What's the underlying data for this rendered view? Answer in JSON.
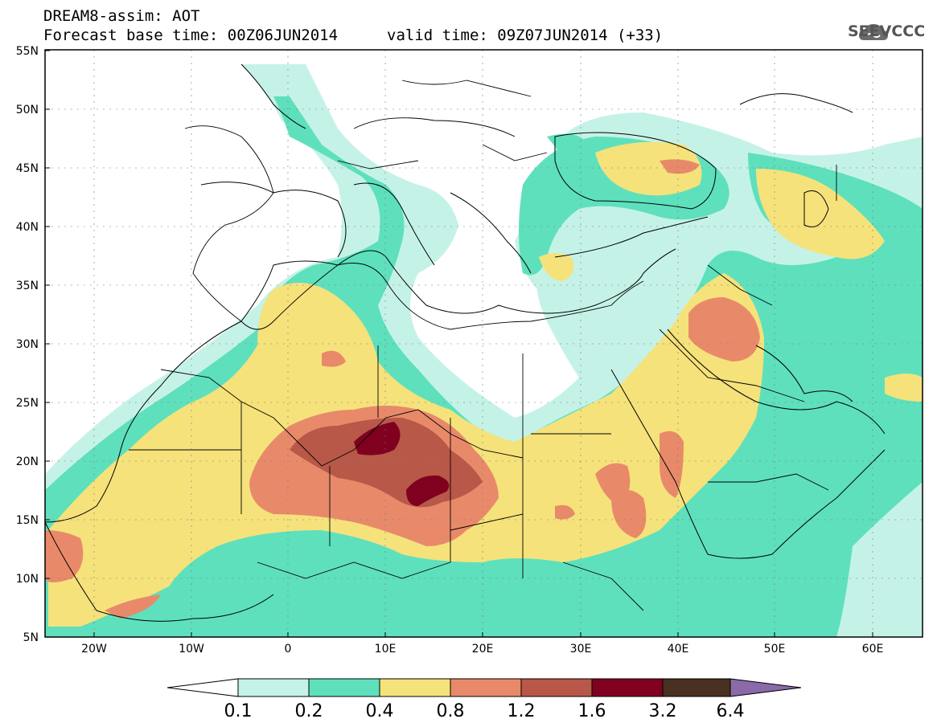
{
  "header": {
    "line1": "DREAM8-assim: AOT",
    "line2": "Forecast base time: 00Z06JUN2014",
    "line3": "valid time: 09Z07JUN2014 (+33)"
  },
  "logo": {
    "text": "SEEVCCC",
    "icon": "cloud-icon"
  },
  "map": {
    "lon_range": [
      -25,
      65
    ],
    "lat_range": [
      5,
      55
    ],
    "lat_ticks": [
      "5N",
      "10N",
      "15N",
      "20N",
      "25N",
      "30N",
      "35N",
      "40N",
      "45N",
      "50N",
      "55N"
    ],
    "lon_ticks": [
      "20W",
      "10W",
      "0",
      "10E",
      "20E",
      "30E",
      "40E",
      "50E",
      "60E"
    ]
  },
  "colorbar": {
    "labels": [
      "0.1",
      "0.2",
      "0.4",
      "0.8",
      "1.2",
      "1.6",
      "3.2",
      "6.4"
    ],
    "colors": [
      "#ffffff",
      "#c5f2e7",
      "#5ee0bd",
      "#f5e27b",
      "#e88a6a",
      "#b85848",
      "#800020",
      "#4a3020",
      "#8a6aa8"
    ]
  }
}
